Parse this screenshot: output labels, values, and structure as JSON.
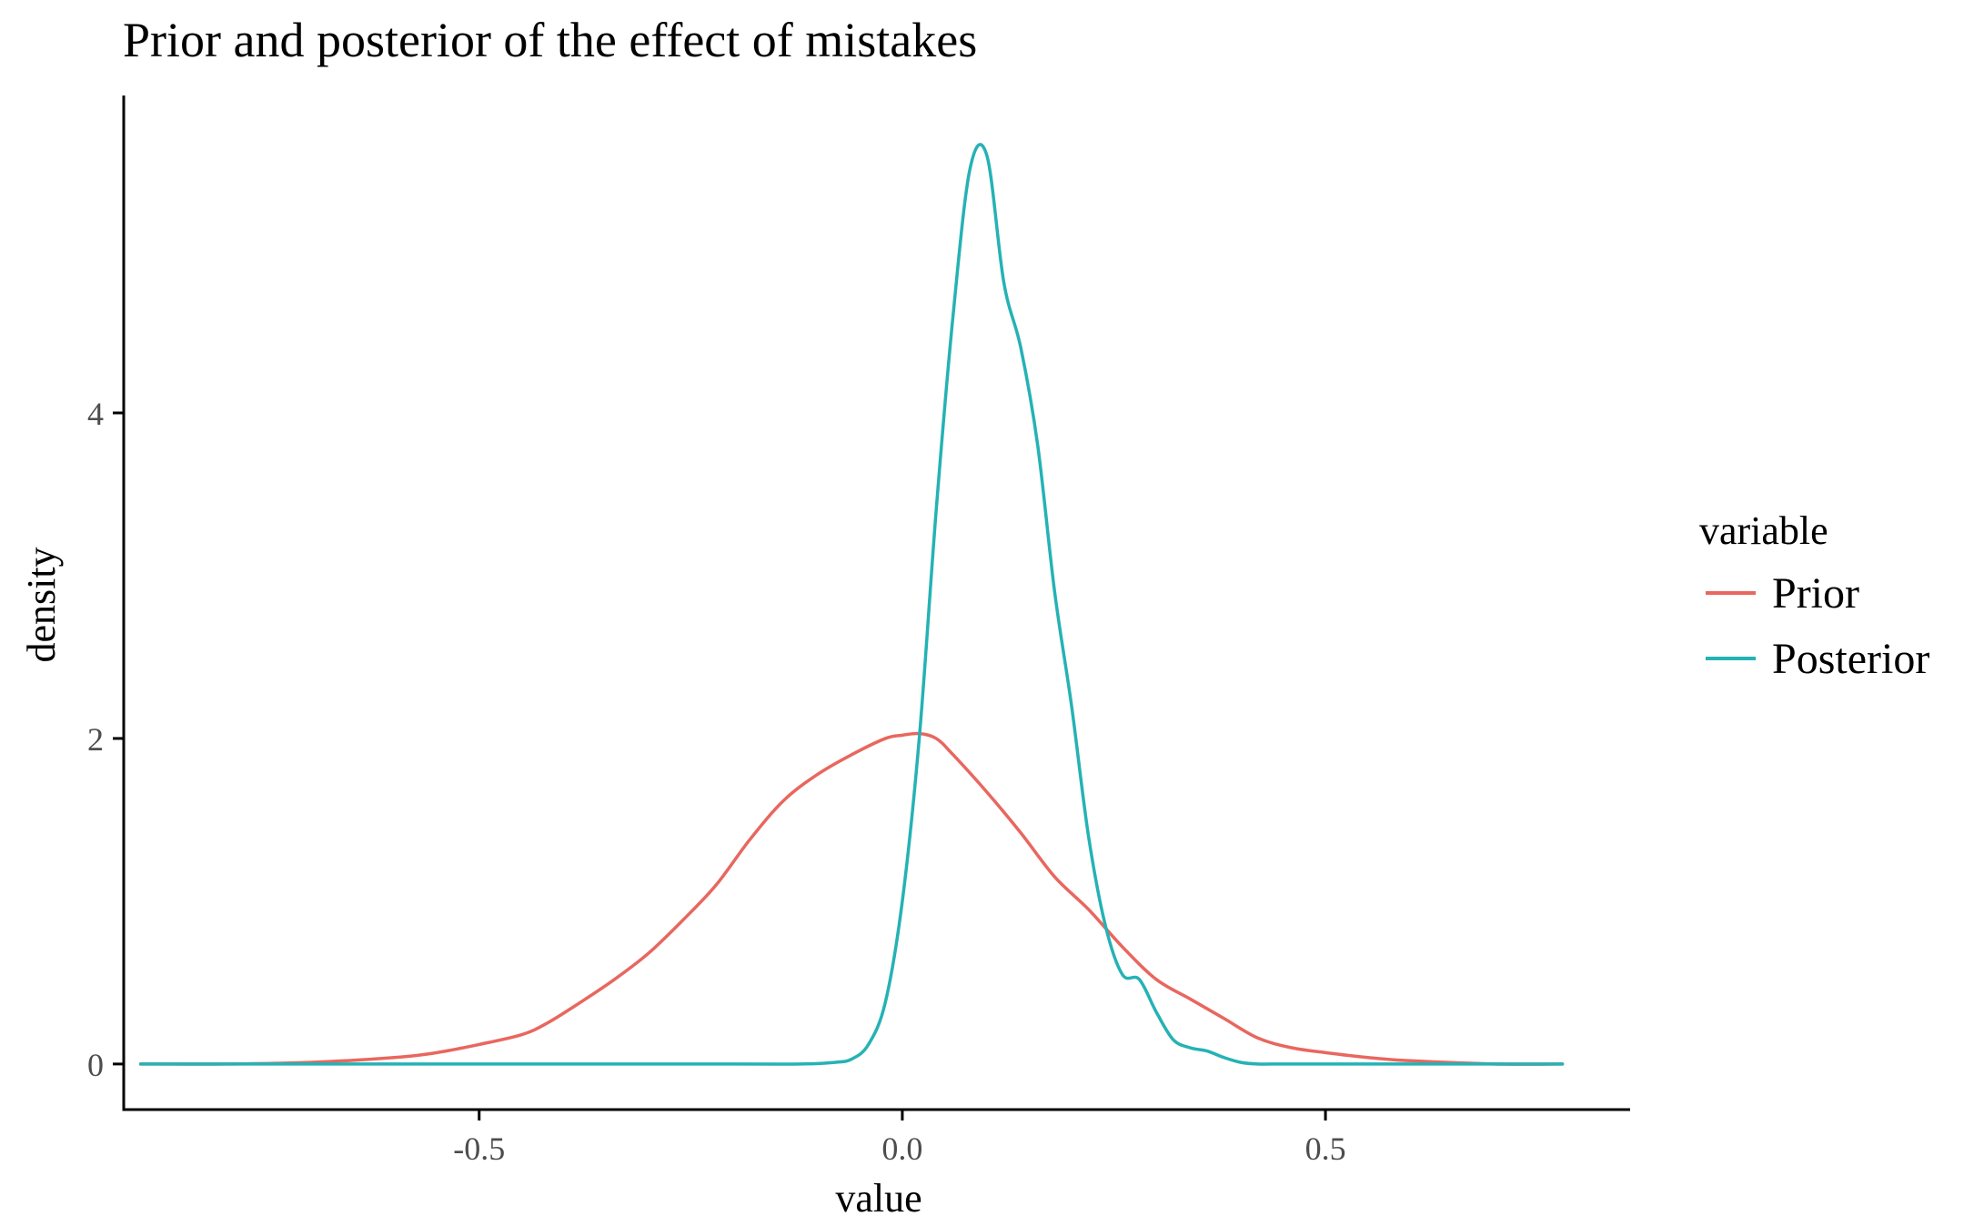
{
  "chart_data": {
    "type": "line",
    "title": "Prior and posterior of the effect of mistakes",
    "xlabel": "value",
    "ylabel": "density",
    "xlim": [
      -0.92,
      0.86
    ],
    "ylim": [
      -0.28,
      5.95
    ],
    "x_ticks": [
      {
        "value": -0.5,
        "label": "-0.5"
      },
      {
        "value": 0.0,
        "label": "0.0"
      },
      {
        "value": 0.5,
        "label": "0.5"
      }
    ],
    "y_ticks": [
      {
        "value": 0,
        "label": "0"
      },
      {
        "value": 2,
        "label": "2"
      },
      {
        "value": 4,
        "label": "4"
      }
    ],
    "grid": false,
    "legend": {
      "title": "variable",
      "position": "right"
    },
    "series": [
      {
        "name": "Prior",
        "color": "#E8675F",
        "x": [
          -0.9,
          -0.8,
          -0.7,
          -0.6,
          -0.55,
          -0.5,
          -0.45,
          -0.42,
          -0.38,
          -0.34,
          -0.3,
          -0.26,
          -0.22,
          -0.18,
          -0.14,
          -0.1,
          -0.06,
          -0.02,
          0.0,
          0.02,
          0.04,
          0.06,
          0.1,
          0.14,
          0.18,
          0.22,
          0.26,
          0.3,
          0.34,
          0.38,
          0.42,
          0.46,
          0.5,
          0.55,
          0.6,
          0.7,
          0.78
        ],
        "y": [
          0.0,
          0.0,
          0.01,
          0.04,
          0.07,
          0.12,
          0.18,
          0.25,
          0.38,
          0.52,
          0.68,
          0.88,
          1.1,
          1.38,
          1.62,
          1.78,
          1.9,
          2.0,
          2.02,
          2.03,
          2.0,
          1.9,
          1.67,
          1.42,
          1.15,
          0.95,
          0.72,
          0.52,
          0.4,
          0.28,
          0.16,
          0.1,
          0.07,
          0.04,
          0.02,
          0.0,
          0.0
        ]
      },
      {
        "name": "Posterior",
        "color": "#25B2B5",
        "x": [
          -0.9,
          -0.5,
          -0.2,
          -0.12,
          -0.08,
          -0.06,
          -0.04,
          -0.02,
          0.0,
          0.02,
          0.04,
          0.06,
          0.08,
          0.1,
          0.12,
          0.14,
          0.16,
          0.18,
          0.2,
          0.22,
          0.24,
          0.26,
          0.28,
          0.3,
          0.32,
          0.34,
          0.36,
          0.38,
          0.4,
          0.42,
          0.44,
          0.5,
          0.6,
          0.78
        ],
        "y": [
          0.0,
          0.0,
          0.0,
          0.0,
          0.01,
          0.03,
          0.12,
          0.38,
          1.0,
          2.0,
          3.4,
          4.6,
          5.5,
          5.58,
          4.8,
          4.4,
          3.8,
          2.9,
          2.2,
          1.4,
          0.85,
          0.55,
          0.52,
          0.32,
          0.15,
          0.1,
          0.08,
          0.04,
          0.01,
          0.0,
          0.0,
          0.0,
          0.0,
          0.0
        ]
      }
    ]
  }
}
